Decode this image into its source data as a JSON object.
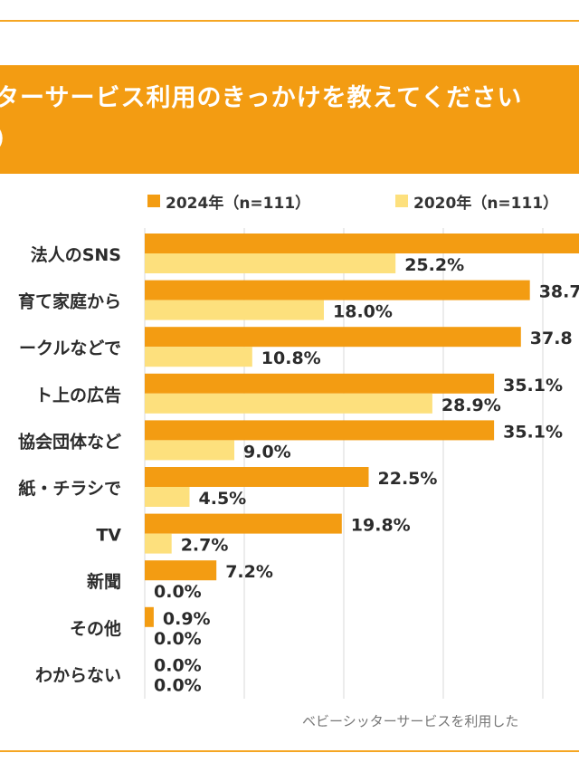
{
  "banner": {
    "line1": "ターサービス利用のきっかけを教えてください",
    "line2": "）"
  },
  "footnote": "ベビーシッターサービスを利用した",
  "colors": {
    "s2024": "#f39c12",
    "s2020": "#fde07d",
    "banner": "#f39c12",
    "grid": "#d9d9d9"
  },
  "chart_data": {
    "type": "bar",
    "orientation": "horizontal",
    "title": "ターサービス利用のきっかけを教えてください",
    "categories": [
      "法人のSNS",
      "育て家庭から",
      "ークルなどで",
      "ト上の広告",
      "協会団体など",
      "紙・チラシで",
      "TV",
      "新聞",
      "その他",
      "わからない"
    ],
    "series": [
      {
        "name": "2024年（n=111）",
        "values": [
          null,
          38.7,
          37.8,
          35.1,
          35.1,
          22.5,
          19.8,
          7.2,
          0.9,
          0.0
        ],
        "labels": [
          "",
          "38.7",
          "37.8",
          "35.1%",
          "35.1%",
          "22.5%",
          "19.8%",
          "7.2%",
          "0.9%",
          "0.0%"
        ]
      },
      {
        "name": "2020年（n=111）",
        "values": [
          25.2,
          18.0,
          10.8,
          28.9,
          9.0,
          4.5,
          2.7,
          0.0,
          0.0,
          0.0
        ],
        "labels": [
          "25.2%",
          "18.0%",
          "10.8%",
          "28.9%",
          "9.0%",
          "4.5%",
          "2.7%",
          "0.0%",
          "0.0%",
          "0.0%"
        ]
      }
    ],
    "xlim": [
      0,
      45
    ]
  }
}
